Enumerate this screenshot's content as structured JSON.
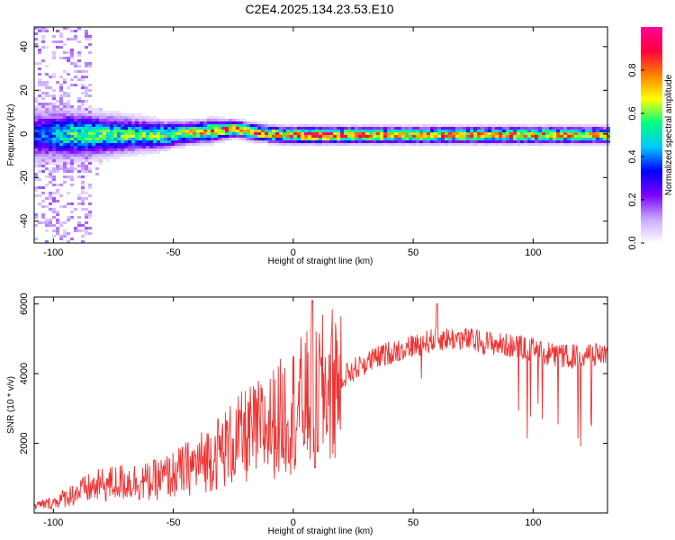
{
  "title": "C2E4.2025.134.23.53.E10",
  "chart_data": [
    {
      "type": "heatmap",
      "xlabel": "Height of straight line (km)",
      "ylabel": "Frequency (Hz)",
      "xlim": [
        -108,
        131
      ],
      "ylim": [
        -50,
        49
      ],
      "xticks": [
        -100,
        -50,
        0,
        50,
        100
      ],
      "yticks": [
        -40,
        -20,
        0,
        20,
        40
      ],
      "grid": false,
      "colorbar": {
        "label": "Normalized spectral amplitude",
        "range": [
          0,
          1
        ],
        "ticks": [
          "0.0",
          "0.2",
          "0.4",
          "0.6",
          "0.8"
        ],
        "ticks_values": [
          0.0,
          0.2,
          0.4,
          0.6,
          0.8
        ],
        "colors": [
          "#ffffff",
          "#c8a8ff",
          "#7a00ff",
          "#0000ff",
          "#00c8ff",
          "#00ff80",
          "#ffff00",
          "#ff8000",
          "#ff0040",
          "#ff0096"
        ]
      },
      "ridge": {
        "x": [
          -105,
          -95,
          -85,
          -75,
          -65,
          -55,
          -45,
          -35,
          -25,
          -15,
          -5,
          5,
          15,
          25,
          50,
          75,
          100,
          130
        ],
        "center_freq": [
          0,
          0,
          0,
          0,
          0,
          0,
          1,
          2,
          3,
          1,
          0,
          0,
          0,
          0,
          0,
          0,
          0,
          0
        ],
        "half_width": [
          10,
          9,
          8,
          7,
          6,
          5,
          4,
          4,
          3,
          3,
          3,
          3,
          3,
          3,
          3,
          3,
          3,
          3
        ],
        "peak_amplitude": [
          0.35,
          0.5,
          0.55,
          0.55,
          0.55,
          0.6,
          0.65,
          0.75,
          0.85,
          0.8,
          0.75,
          0.9,
          0.85,
          0.8,
          0.75,
          0.75,
          0.75,
          0.7
        ]
      }
    },
    {
      "type": "line",
      "xlabel": "Height of straight line (km)",
      "ylabel": "SNR (10 * v/v)",
      "xlim": [
        -108,
        131
      ],
      "ylim": [
        0,
        6200
      ],
      "xticks": [
        -100,
        -50,
        0,
        50,
        100
      ],
      "yticks": [
        2000,
        4000,
        6000
      ],
      "grid": false,
      "color": "#ee3333",
      "series": [
        {
          "x": [
            -108,
            -100,
            -90,
            -80,
            -70,
            -60,
            -50,
            -40,
            -30,
            -20,
            -10,
            0,
            10,
            20,
            30,
            40,
            50,
            60,
            70,
            80,
            90,
            100,
            110,
            120,
            131
          ],
          "values": [
            200,
            300,
            600,
            800,
            900,
            900,
            1100,
            1400,
            1800,
            2200,
            2500,
            3000,
            3400,
            3900,
            4300,
            4600,
            4800,
            5000,
            5000,
            4900,
            4800,
            4700,
            4500,
            4500,
            4600
          ]
        }
      ],
      "spikes": [
        {
          "x": 8,
          "value": 6100
        },
        {
          "x": 60,
          "value": 6000
        },
        {
          "x": 9,
          "value": 1300
        }
      ],
      "dropout_range": [
        97,
        128
      ],
      "dropout_floor": 1900
    }
  ]
}
